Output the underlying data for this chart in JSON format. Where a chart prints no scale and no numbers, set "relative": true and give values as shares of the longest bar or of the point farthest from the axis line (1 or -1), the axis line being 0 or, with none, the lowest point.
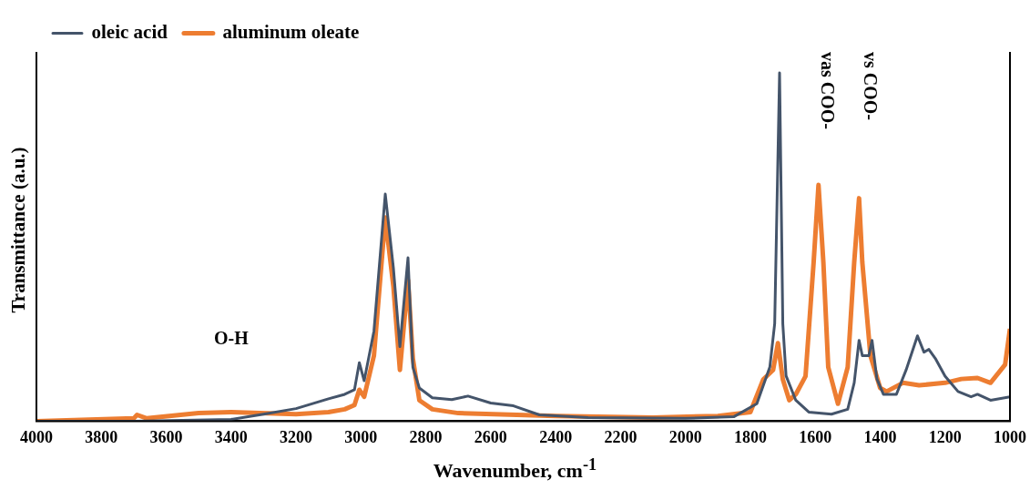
{
  "chart_data": {
    "type": "line",
    "relative": true,
    "xlabel": "Wavenumber, cm$^{-1}$",
    "ylabel": "Transmittance (a.u.)",
    "xlim": [
      4000,
      1000
    ],
    "xticks": [
      4000,
      3800,
      3600,
      3400,
      3200,
      3000,
      2800,
      2600,
      2400,
      2200,
      2000,
      1800,
      1600,
      1400,
      1200,
      1000
    ],
    "legend": "top left",
    "marker": "none",
    "line_style": "solid",
    "grid": false,
    "annotations": [
      "O-H",
      "vas COO-",
      "vs COO-"
    ],
    "series": [
      {
        "name": "oleic acid",
        "color": "#44546a",
        "x": [
          4000,
          3700,
          3400,
          3300,
          3200,
          3100,
          3050,
          3020,
          3005,
          2990,
          2960,
          2925,
          2900,
          2880,
          2855,
          2840,
          2820,
          2780,
          2720,
          2670,
          2600,
          2530,
          2450,
          2300,
          2000,
          1850,
          1780,
          1740,
          1725,
          1710,
          1700,
          1690,
          1660,
          1620,
          1550,
          1500,
          1480,
          1465,
          1455,
          1435,
          1425,
          1410,
          1390,
          1350,
          1320,
          1285,
          1265,
          1250,
          1230,
          1200,
          1160,
          1120,
          1100,
          1060,
          1000
        ],
        "values": [
          0,
          0,
          0.005,
          0.02,
          0.036,
          0.064,
          0.077,
          0.09,
          0.168,
          0.116,
          0.258,
          0.652,
          0.44,
          0.214,
          0.469,
          0.155,
          0.095,
          0.067,
          0.062,
          0.072,
          0.052,
          0.044,
          0.018,
          0.01,
          0.008,
          0.013,
          0.05,
          0.155,
          0.28,
          1,
          0.28,
          0.13,
          0.06,
          0.026,
          0.02,
          0.034,
          0.11,
          0.232,
          0.188,
          0.188,
          0.232,
          0.121,
          0.077,
          0.077,
          0.147,
          0.245,
          0.198,
          0.206,
          0.18,
          0.129,
          0.085,
          0.07,
          0.077,
          0.06,
          0.07
        ]
      },
      {
        "name": "aluminum oleate",
        "color": "#ed7d31",
        "x": [
          4000,
          3700,
          3690,
          3660,
          3500,
          3400,
          3200,
          3100,
          3050,
          3020,
          3005,
          2990,
          2960,
          2925,
          2900,
          2880,
          2855,
          2840,
          2820,
          2780,
          2700,
          2400,
          2100,
          1900,
          1800,
          1760,
          1730,
          1715,
          1700,
          1680,
          1660,
          1630,
          1605,
          1590,
          1575,
          1560,
          1530,
          1500,
          1480,
          1465,
          1455,
          1430,
          1400,
          1380,
          1330,
          1280,
          1200,
          1150,
          1100,
          1060,
          1015,
          1000
        ],
        "values": [
          0,
          0.008,
          0.018,
          0.008,
          0.023,
          0.026,
          0.02,
          0.026,
          0.034,
          0.046,
          0.09,
          0.07,
          0.188,
          0.585,
          0.387,
          0.147,
          0.405,
          0.18,
          0.06,
          0.034,
          0.023,
          0.015,
          0.01,
          0.015,
          0.026,
          0.12,
          0.147,
          0.224,
          0.12,
          0.06,
          0.077,
          0.129,
          0.456,
          0.678,
          0.456,
          0.155,
          0.05,
          0.155,
          0.456,
          0.64,
          0.456,
          0.188,
          0.095,
          0.085,
          0.11,
          0.103,
          0.11,
          0.121,
          0.124,
          0.11,
          0.162,
          0.265
        ]
      }
    ]
  }
}
